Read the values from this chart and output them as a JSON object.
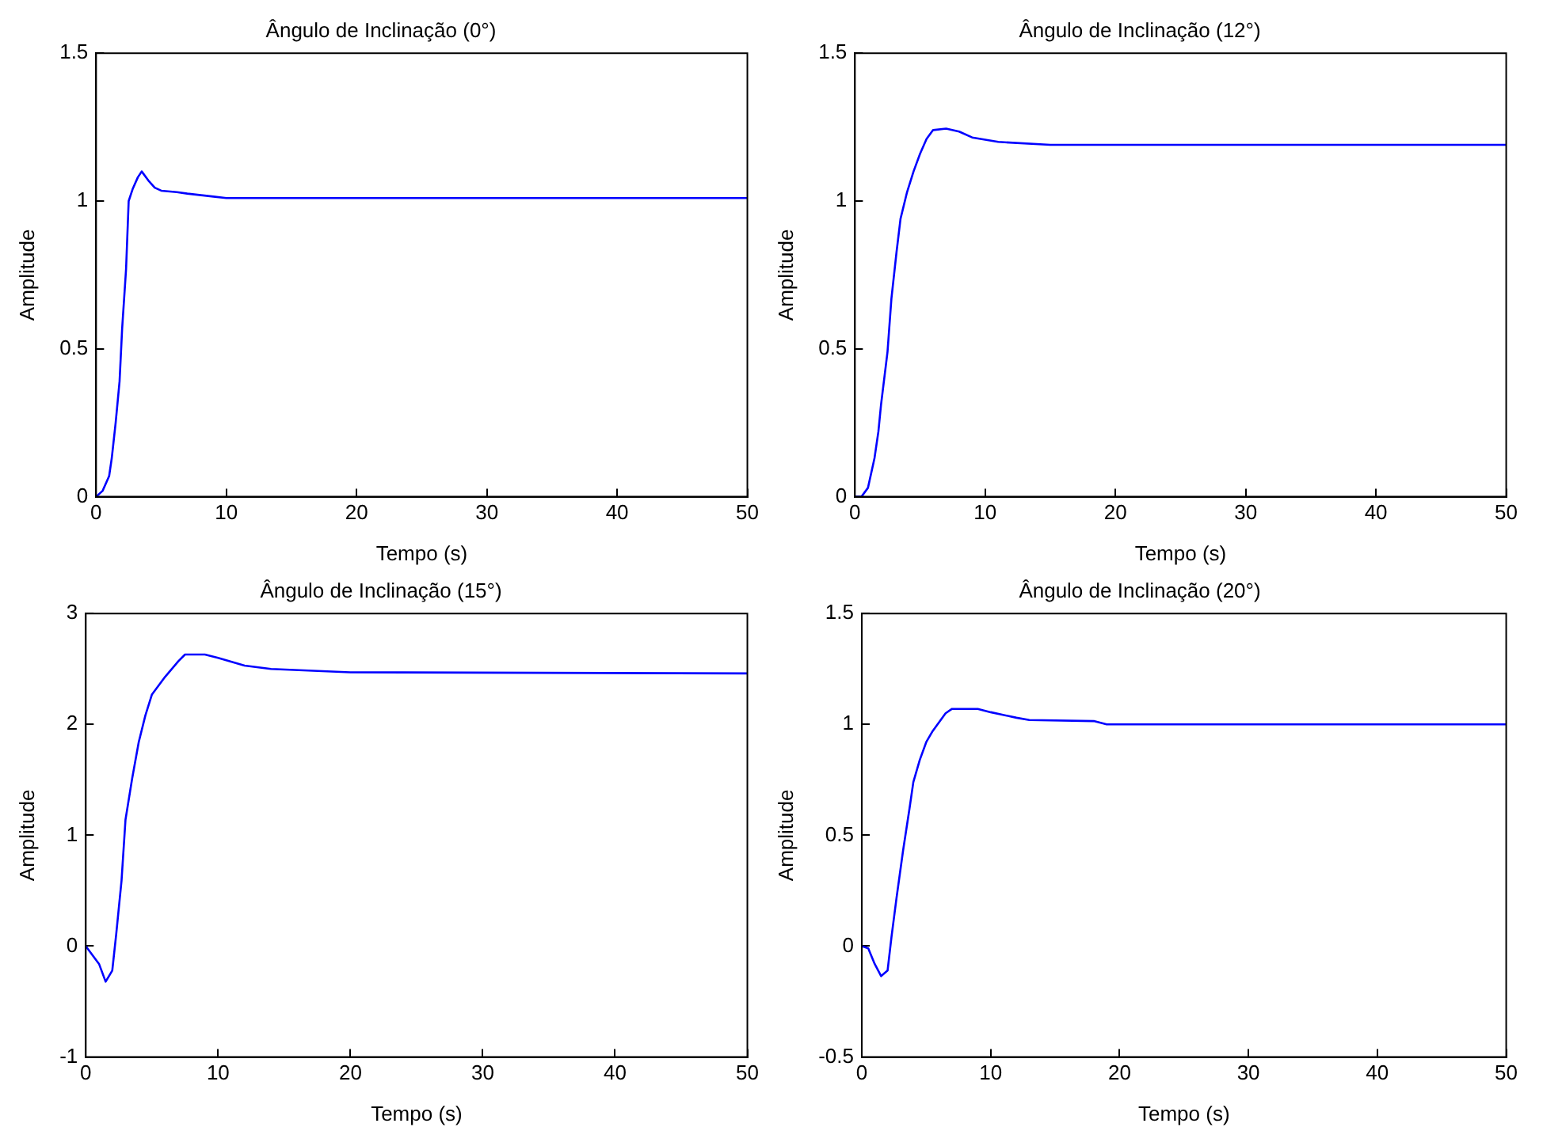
{
  "chart_data": [
    {
      "type": "line",
      "title": "Ângulo de Inclinação (0°)",
      "xlabel": "Tempo (s)",
      "ylabel": "Amplitude",
      "xlim": [
        0,
        50
      ],
      "xticks": [
        0,
        10,
        20,
        30,
        40,
        50
      ],
      "ylim": [
        0,
        1.5
      ],
      "yticks": [
        0,
        0.5,
        1,
        1.5
      ],
      "grid": false,
      "legend": false,
      "marker": "none",
      "line_style": "solid",
      "series": [
        {
          "color": "#0000ff",
          "x": [
            0,
            0.5,
            1,
            1.2,
            1.5,
            1.8,
            2,
            2.3,
            2.5,
            2.8,
            3.2,
            3.5,
            4,
            4.5,
            5,
            6.2,
            7,
            9,
            10,
            50
          ],
          "values": [
            0,
            0.02,
            0.07,
            0.13,
            0.25,
            0.39,
            0.57,
            0.77,
            1,
            1.04,
            1.08,
            1.1,
            1.07,
            1.045,
            1.035,
            1.03,
            1.025,
            1.015,
            1.01,
            1.01
          ]
        }
      ]
    },
    {
      "type": "line",
      "title": "Ângulo de Inclinação (12°)",
      "xlabel": "Tempo (s)",
      "ylabel": "Amplitude",
      "xlim": [
        0,
        50
      ],
      "xticks": [
        0,
        10,
        20,
        30,
        40,
        50
      ],
      "ylim": [
        0,
        1.5
      ],
      "yticks": [
        0,
        0.5,
        1,
        1.5
      ],
      "grid": false,
      "legend": false,
      "marker": "none",
      "line_style": "solid",
      "series": [
        {
          "color": "#0000ff",
          "x": [
            0,
            0.5,
            1,
            1.5,
            1.8,
            2,
            2.5,
            2.8,
            3.2,
            3.5,
            4,
            4.5,
            5,
            5.5,
            6,
            7,
            8,
            9,
            11,
            15,
            50
          ],
          "values": [
            0,
            0,
            0.03,
            0.13,
            0.22,
            0.31,
            0.49,
            0.67,
            0.83,
            0.94,
            1.03,
            1.1,
            1.16,
            1.21,
            1.24,
            1.245,
            1.235,
            1.215,
            1.2,
            1.19,
            1.19
          ]
        }
      ]
    },
    {
      "type": "line",
      "title": "Ângulo de Inclinação (15°)",
      "xlabel": "Tempo (s)",
      "ylabel": "Amplitude",
      "xlim": [
        0,
        50
      ],
      "xticks": [
        0,
        10,
        20,
        30,
        40,
        50
      ],
      "ylim": [
        -1,
        3
      ],
      "yticks": [
        -1,
        0,
        1,
        2,
        3
      ],
      "grid": false,
      "legend": false,
      "marker": "none",
      "line_style": "solid",
      "series": [
        {
          "color": "#0000ff",
          "x": [
            0,
            1,
            1.5,
            2,
            2.3,
            2.7,
            3,
            3.5,
            4,
            4.5,
            5,
            6,
            7,
            7.5,
            9,
            10,
            12,
            14,
            20,
            50
          ],
          "values": [
            0,
            -0.16,
            -0.32,
            -0.22,
            0.11,
            0.59,
            1.14,
            1.51,
            1.84,
            2.08,
            2.27,
            2.43,
            2.57,
            2.63,
            2.63,
            2.6,
            2.53,
            2.5,
            2.47,
            2.46
          ]
        }
      ]
    },
    {
      "type": "line",
      "title": "Ângulo de Inclinação (20°)",
      "xlabel": "Tempo (s)",
      "ylabel": "Amplitude",
      "xlim": [
        0,
        50
      ],
      "xticks": [
        0,
        10,
        20,
        30,
        40,
        50
      ],
      "ylim": [
        -0.5,
        1.5
      ],
      "yticks": [
        -0.5,
        0,
        0.5,
        1,
        1.5
      ],
      "grid": false,
      "legend": false,
      "marker": "none",
      "line_style": "solid",
      "series": [
        {
          "color": "#0000ff",
          "x": [
            0,
            0.5,
            1,
            1.5,
            2,
            2.3,
            2.7,
            3.2,
            3.7,
            4,
            4.5,
            5,
            5.5,
            6.5,
            7,
            9,
            10,
            12,
            13,
            18,
            19,
            50
          ],
          "values": [
            0,
            -0.01,
            -0.08,
            -0.135,
            -0.11,
            0.04,
            0.22,
            0.43,
            0.62,
            0.74,
            0.84,
            0.92,
            0.97,
            1.05,
            1.07,
            1.07,
            1.055,
            1.03,
            1.02,
            1.015,
            1,
            1
          ]
        }
      ]
    }
  ]
}
